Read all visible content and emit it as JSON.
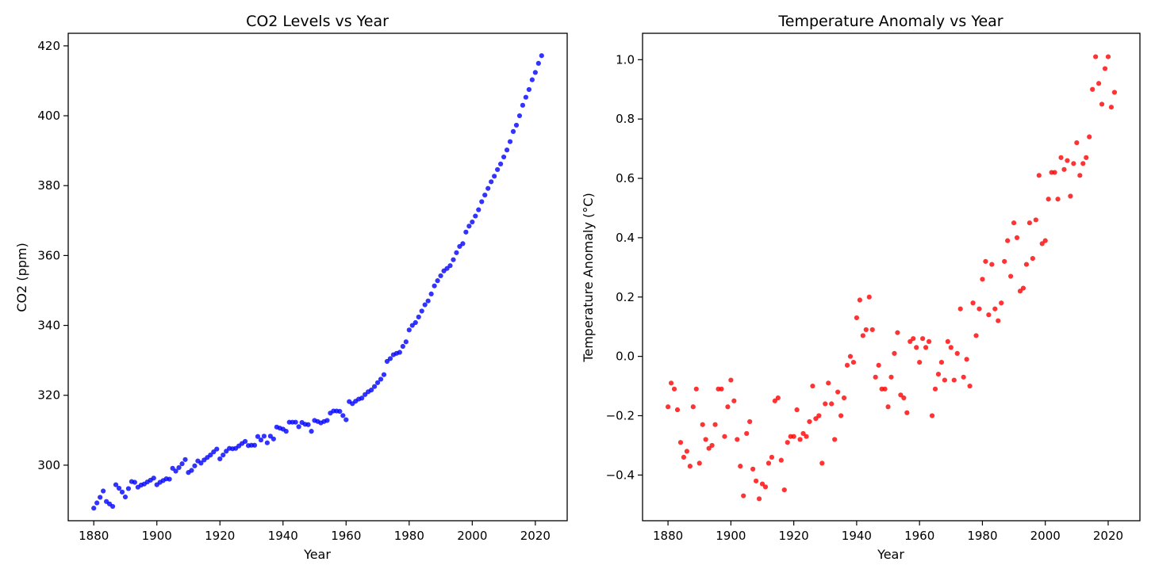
{
  "chart_data": [
    {
      "type": "scatter",
      "title": "CO2 Levels vs Year",
      "xlabel": "Year",
      "ylabel": "CO2 (ppm)",
      "xlim": [
        1871.9,
        2030.1
      ],
      "ylim": [
        284.1,
        423.6
      ],
      "xticks": [
        1880,
        1900,
        1920,
        1940,
        1960,
        1980,
        2000,
        2020
      ],
      "yticks": [
        300,
        320,
        340,
        360,
        380,
        400,
        420
      ],
      "grid": false,
      "color": "#0000ff",
      "x": [
        1880,
        1881,
        1882,
        1883,
        1884,
        1885,
        1886,
        1887,
        1888,
        1889,
        1890,
        1891,
        1892,
        1893,
        1894,
        1895,
        1896,
        1897,
        1898,
        1899,
        1900,
        1901,
        1902,
        1903,
        1904,
        1905,
        1906,
        1907,
        1908,
        1909,
        1910,
        1911,
        1912,
        1913,
        1914,
        1915,
        1916,
        1917,
        1918,
        1919,
        1920,
        1921,
        1922,
        1923,
        1924,
        1925,
        1926,
        1927,
        1928,
        1929,
        1930,
        1931,
        1932,
        1933,
        1934,
        1935,
        1936,
        1937,
        1938,
        1939,
        1940,
        1941,
        1942,
        1943,
        1944,
        1945,
        1946,
        1947,
        1948,
        1949,
        1950,
        1951,
        1952,
        1953,
        1954,
        1955,
        1956,
        1957,
        1958,
        1959,
        1960,
        1961,
        1962,
        1963,
        1964,
        1965,
        1966,
        1967,
        1968,
        1969,
        1970,
        1971,
        1972,
        1973,
        1974,
        1975,
        1976,
        1977,
        1978,
        1979,
        1980,
        1981,
        1982,
        1983,
        1984,
        1985,
        1986,
        1987,
        1988,
        1989,
        1990,
        1991,
        1992,
        1993,
        1994,
        1995,
        1996,
        1997,
        1998,
        1999,
        2000,
        2001,
        2002,
        2003,
        2004,
        2005,
        2006,
        2007,
        2008,
        2009,
        2010,
        2011,
        2012,
        2013,
        2014,
        2015,
        2016,
        2017,
        2018,
        2019,
        2020,
        2021,
        2022
      ],
      "y": [
        287.7,
        289.2,
        290.8,
        292.6,
        289.6,
        288.9,
        288.2,
        294.4,
        293.4,
        292.3,
        290.9,
        293.3,
        295.3,
        295.1,
        293.7,
        294.3,
        294.6,
        295.2,
        295.7,
        296.3,
        294.4,
        295.1,
        295.6,
        296.1,
        296.0,
        299.1,
        298.3,
        299.3,
        300.4,
        301.6,
        297.9,
        298.5,
        299.8,
        301.2,
        300.6,
        301.5,
        302.2,
        302.9,
        303.8,
        304.6,
        301.8,
        302.9,
        304.0,
        304.8,
        304.7,
        304.8,
        305.5,
        306.2,
        306.8,
        305.6,
        305.7,
        305.7,
        308.2,
        307.2,
        308.3,
        306.4,
        308.3,
        307.5,
        310.9,
        310.6,
        310.3,
        309.7,
        312.3,
        312.3,
        312.3,
        311.0,
        312.2,
        311.7,
        311.6,
        309.7,
        312.8,
        312.5,
        312.1,
        312.5,
        312.8,
        314.9,
        315.5,
        315.5,
        315.4,
        314.2,
        313.0,
        318.2,
        317.6,
        318.3,
        318.9,
        319.2,
        320.2,
        321.0,
        321.5,
        322.5,
        323.6,
        324.6,
        325.9,
        329.7,
        330.5,
        331.6,
        332.0,
        332.3,
        334.0,
        335.3,
        338.7,
        340.0,
        340.8,
        342.4,
        344.1,
        345.9,
        347.0,
        349.0,
        351.3,
        352.8,
        354.2,
        355.6,
        356.3,
        357.1,
        358.8,
        360.8,
        362.6,
        363.4,
        366.7,
        368.4,
        369.6,
        371.3,
        373.1,
        375.4,
        377.3,
        379.2,
        381.1,
        382.7,
        384.6,
        386.2,
        388.2,
        390.2,
        392.6,
        395.5,
        397.3,
        400.0,
        403.0,
        405.3,
        407.5,
        410.3,
        412.4,
        415.0,
        417.2
      ]
    },
    {
      "type": "scatter",
      "title": "Temperature Anomaly vs Year",
      "xlabel": "Year",
      "ylabel": "Temperature Anomaly (°C)",
      "xlim": [
        1871.9,
        2030.1
      ],
      "ylim": [
        -0.554,
        1.089
      ],
      "xticks": [
        1880,
        1900,
        1920,
        1940,
        1960,
        1980,
        2000,
        2020
      ],
      "yticks": [
        -0.4,
        -0.2,
        0.0,
        0.2,
        0.4,
        0.6,
        0.8,
        1.0
      ],
      "grid": false,
      "color": "#ff0000",
      "x": [
        1880,
        1881,
        1882,
        1883,
        1884,
        1885,
        1886,
        1887,
        1888,
        1889,
        1890,
        1891,
        1892,
        1893,
        1894,
        1895,
        1896,
        1897,
        1898,
        1899,
        1900,
        1901,
        1902,
        1903,
        1904,
        1905,
        1906,
        1907,
        1908,
        1909,
        1910,
        1911,
        1912,
        1913,
        1914,
        1915,
        1916,
        1917,
        1918,
        1919,
        1920,
        1921,
        1922,
        1923,
        1924,
        1925,
        1926,
        1927,
        1928,
        1929,
        1930,
        1931,
        1932,
        1933,
        1934,
        1935,
        1936,
        1937,
        1938,
        1939,
        1940,
        1941,
        1942,
        1943,
        1944,
        1945,
        1946,
        1947,
        1948,
        1949,
        1950,
        1951,
        1952,
        1953,
        1954,
        1955,
        1956,
        1957,
        1958,
        1959,
        1960,
        1961,
        1962,
        1963,
        1964,
        1965,
        1966,
        1967,
        1968,
        1969,
        1970,
        1971,
        1972,
        1973,
        1974,
        1975,
        1976,
        1977,
        1978,
        1979,
        1980,
        1981,
        1982,
        1983,
        1984,
        1985,
        1986,
        1987,
        1988,
        1989,
        1990,
        1991,
        1992,
        1993,
        1994,
        1995,
        1996,
        1997,
        1998,
        1999,
        2000,
        2001,
        2002,
        2003,
        2004,
        2005,
        2006,
        2007,
        2008,
        2009,
        2010,
        2011,
        2012,
        2013,
        2014,
        2015,
        2016,
        2017,
        2018,
        2019,
        2020,
        2021,
        2022
      ],
      "y": [
        -0.17,
        -0.09,
        -0.11,
        -0.18,
        -0.29,
        -0.34,
        -0.32,
        -0.37,
        -0.17,
        -0.11,
        -0.36,
        -0.23,
        -0.28,
        -0.31,
        -0.3,
        -0.23,
        -0.11,
        -0.11,
        -0.27,
        -0.17,
        -0.08,
        -0.15,
        -0.28,
        -0.37,
        -0.47,
        -0.26,
        -0.22,
        -0.38,
        -0.42,
        -0.48,
        -0.43,
        -0.44,
        -0.36,
        -0.34,
        -0.15,
        -0.14,
        -0.35,
        -0.45,
        -0.29,
        -0.27,
        -0.27,
        -0.18,
        -0.28,
        -0.26,
        -0.27,
        -0.22,
        -0.1,
        -0.21,
        -0.2,
        -0.36,
        -0.16,
        -0.09,
        -0.16,
        -0.28,
        -0.12,
        -0.2,
        -0.14,
        -0.03,
        0.0,
        -0.02,
        0.13,
        0.19,
        0.07,
        0.09,
        0.2,
        0.09,
        -0.07,
        -0.03,
        -0.11,
        -0.11,
        -0.17,
        -0.07,
        0.01,
        0.08,
        -0.13,
        -0.14,
        -0.19,
        0.05,
        0.06,
        0.03,
        -0.02,
        0.06,
        0.03,
        0.05,
        -0.2,
        -0.11,
        -0.06,
        -0.02,
        -0.08,
        0.05,
        0.03,
        -0.08,
        0.01,
        0.16,
        -0.07,
        -0.01,
        -0.1,
        0.18,
        0.07,
        0.16,
        0.26,
        0.32,
        0.14,
        0.31,
        0.16,
        0.12,
        0.18,
        0.32,
        0.39,
        0.27,
        0.45,
        0.4,
        0.22,
        0.23,
        0.31,
        0.45,
        0.33,
        0.46,
        0.61,
        0.38,
        0.39,
        0.53,
        0.62,
        0.62,
        0.53,
        0.67,
        0.63,
        0.66,
        0.54,
        0.65,
        0.72,
        0.61,
        0.65,
        0.67,
        0.74,
        0.9,
        1.01,
        0.92,
        0.85,
        0.97,
        1.01,
        0.84,
        0.89
      ]
    }
  ]
}
